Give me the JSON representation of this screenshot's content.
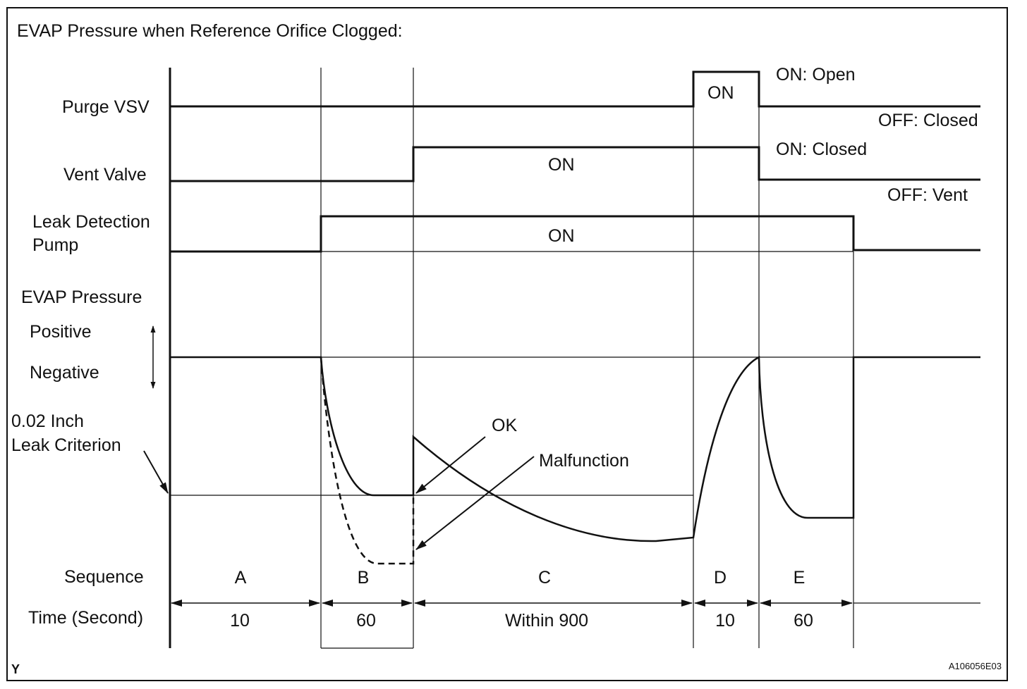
{
  "title": "EVAP Pressure when Reference Orifice Clogged:",
  "footer": {
    "left": "Y",
    "right": "A106056E03"
  },
  "signals": {
    "purge_vsv": {
      "label": "Purge VSV",
      "on_text": "ON",
      "on_state": "ON: Open",
      "off_state": "OFF: Closed"
    },
    "vent_valve": {
      "label": "Vent Valve",
      "on_text": "ON",
      "on_state": "ON: Closed",
      "off_state": "OFF: Vent"
    },
    "leak_pump": {
      "label_line1": "Leak Detection",
      "label_line2": "Pump",
      "on_text": "ON"
    }
  },
  "pressure": {
    "label": "EVAP Pressure",
    "positive": "Positive",
    "negative": "Negative",
    "criterion_line1": "0.02 Inch",
    "criterion_line2": "Leak Criterion",
    "ok_label": "OK",
    "malfunction_label": "Malfunction"
  },
  "sequence": {
    "label": "Sequence",
    "time_label": "Time (Second)",
    "phases": [
      {
        "name": "A",
        "time": "10"
      },
      {
        "name": "B",
        "time": "60"
      },
      {
        "name": "C",
        "time": "Within 900"
      },
      {
        "name": "D",
        "time": "10"
      },
      {
        "name": "E",
        "time": "60"
      }
    ]
  },
  "colors": {
    "line": "#111111",
    "background": "#ffffff"
  }
}
